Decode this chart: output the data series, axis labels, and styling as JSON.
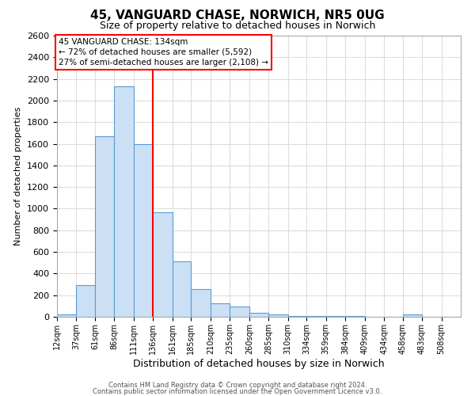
{
  "title": "45, VANGUARD CHASE, NORWICH, NR5 0UG",
  "subtitle": "Size of property relative to detached houses in Norwich",
  "xlabel": "Distribution of detached houses by size in Norwich",
  "ylabel": "Number of detached properties",
  "bin_labels": [
    "12sqm",
    "37sqm",
    "61sqm",
    "86sqm",
    "111sqm",
    "136sqm",
    "161sqm",
    "185sqm",
    "210sqm",
    "235sqm",
    "260sqm",
    "285sqm",
    "310sqm",
    "334sqm",
    "359sqm",
    "384sqm",
    "409sqm",
    "434sqm",
    "458sqm",
    "483sqm",
    "508sqm"
  ],
  "bin_edges": [
    12,
    37,
    61,
    86,
    111,
    136,
    161,
    185,
    210,
    235,
    260,
    285,
    310,
    334,
    359,
    384,
    409,
    434,
    458,
    483,
    508
  ],
  "bar_heights": [
    20,
    290,
    1670,
    2130,
    1600,
    970,
    510,
    255,
    125,
    95,
    35,
    20,
    5,
    5,
    5,
    5,
    0,
    0,
    20,
    0,
    0
  ],
  "bar_color": "#cce0f5",
  "bar_edge_color": "#5b9bd5",
  "property_line_x": 136,
  "property_line_color": "red",
  "annotation_line1": "45 VANGUARD CHASE: 134sqm",
  "annotation_line2": "← 72% of detached houses are smaller (5,592)",
  "annotation_line3": "27% of semi-detached houses are larger (2,108) →",
  "ylim": [
    0,
    2600
  ],
  "yticks": [
    0,
    200,
    400,
    600,
    800,
    1000,
    1200,
    1400,
    1600,
    1800,
    2000,
    2200,
    2400,
    2600
  ],
  "footer_line1": "Contains HM Land Registry data © Crown copyright and database right 2024.",
  "footer_line2": "Contains public sector information licensed under the Open Government Licence v3.0.",
  "background_color": "#ffffff",
  "grid_color": "#dddddd"
}
